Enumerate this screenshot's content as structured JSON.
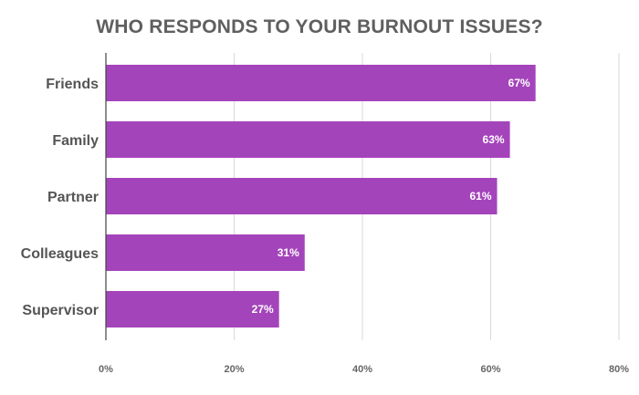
{
  "chart_data": {
    "type": "bar",
    "orientation": "horizontal",
    "title": "WHO RESPONDS TO YOUR BURNOUT ISSUES?",
    "categories": [
      "Friends",
      "Family",
      "Partner",
      "Colleagues",
      "Supervisor"
    ],
    "values": [
      67,
      63,
      61,
      31,
      27
    ],
    "value_labels": [
      "67%",
      "63%",
      "61%",
      "31%",
      "27%"
    ],
    "xlim": [
      0,
      80
    ],
    "x_ticks": [
      0,
      20,
      40,
      60,
      80
    ],
    "x_tick_labels": [
      "0%",
      "20%",
      "40%",
      "60%",
      "80%"
    ],
    "grid": true,
    "colors": {
      "bar": "#a444bb",
      "grid": "#d9d9d9",
      "axis": "#444444"
    }
  }
}
